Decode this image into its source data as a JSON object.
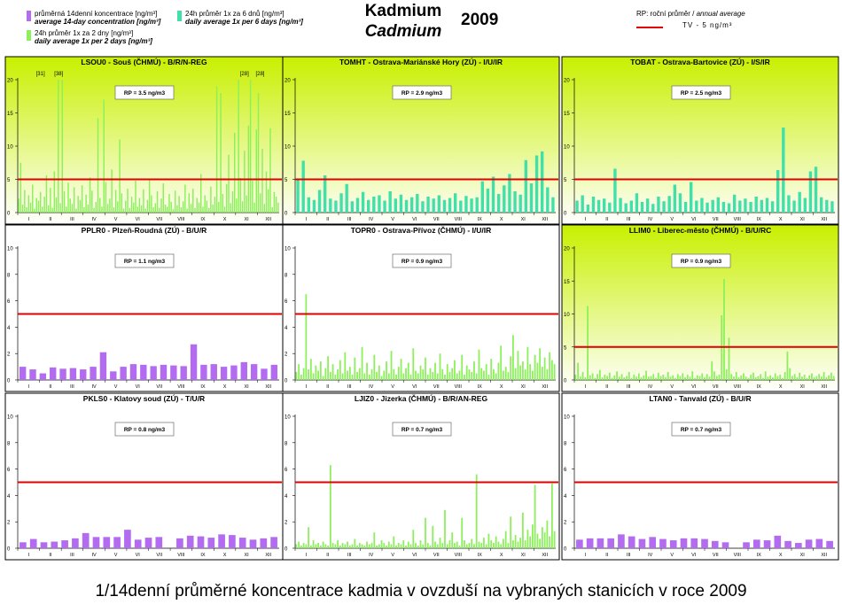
{
  "header": {
    "legend": [
      {
        "line1": "průměrná 14denní koncentrace [ng/m³]",
        "line2": "average 14-day concentration [ng/m³]",
        "color": "#b36cf0"
      },
      {
        "line1": "24h průměr 1x za 2 dny [ng/m³]",
        "line2": "daily average 1x per 2 days [ng/m³]",
        "color": "#8cf05a"
      },
      {
        "line1": "24h průměr 1x za 6 dnů [ng/m³]",
        "line2": "daily average 1x per 6 days [ng/m³]",
        "color": "#40e0a8"
      }
    ],
    "title_cz": "Kadmium",
    "title_en": "Cadmium",
    "year": "2009",
    "rp_label_cz": "RP: roční průměr /",
    "rp_label_en": "annual average",
    "tv_label": "TV - 5 ng/m³",
    "tv_color": "#e00000"
  },
  "caption": "1/14denní průměrné koncentrace kadmia v ovzduší na vybraných stanicích v roce 2009",
  "chart_data": [
    {
      "type": "bar",
      "title": "LSOU0 - Souš (ČHMÚ) - B/R/N-REG",
      "rp": "RP = 3.5 ng/m3",
      "ylim": [
        0,
        20
      ],
      "yticks": [
        0,
        5,
        10,
        15,
        20
      ],
      "bg": "gradient",
      "series_type": "daily2",
      "series_color": "#8cf05a",
      "tv": 5,
      "months": [
        "I",
        "II",
        "III",
        "IV",
        "V",
        "VI",
        "VII",
        "VIII",
        "IX",
        "X",
        "XI",
        "XII"
      ],
      "annotations": [
        "[31]",
        "[38]",
        "[28]",
        "[28]"
      ],
      "values": [
        2.1,
        7.5,
        1.2,
        3.4,
        0.8,
        2.6,
        1.5,
        4.2,
        0.6,
        2.2,
        1.8,
        3.1,
        0.9,
        2.4,
        5.6,
        1.1,
        3.7,
        0.7,
        6.2,
        2.3,
        20,
        1.4,
        20,
        3.2,
        0.9,
        4.5,
        2.1,
        1.3,
        3.8,
        0.6,
        2.5,
        1.9,
        4.1,
        0.8,
        2.7,
        1.2,
        5.3,
        3.3,
        0.7,
        1.6,
        14.2,
        2.2,
        0.9,
        17,
        4.6,
        1.3,
        2.1,
        6.5,
        0.8,
        3.4,
        1.7,
        11,
        2.9,
        0.6,
        1.8,
        3.6,
        0.7,
        2.4,
        1.5,
        4.8,
        0.9,
        2.2,
        1.1,
        3.5,
        0.6,
        1.9,
        5.1,
        2.6,
        0.8,
        1.4,
        3.2,
        0.7,
        2.1,
        4.4,
        1.2,
        0.9,
        2.8,
        1.6,
        0.5,
        3.3,
        1.1,
        2.5,
        0.8,
        1.7,
        4.2,
        0.6,
        2.9,
        1.3,
        3.6,
        0.7,
        2.2,
        1.5,
        5.8,
        0.9,
        2.6,
        1.8,
        0.7,
        3.9,
        1.2,
        2.4,
        19,
        1.6,
        18,
        2.8,
        0.9,
        4.3,
        8.7,
        1.4,
        3.2,
        12,
        2.1,
        20,
        5.2,
        1.7,
        9.3,
        2.6,
        13.1,
        20,
        4.8,
        1.5,
        12.5,
        18,
        2.9,
        9.6,
        1.3,
        6.2,
        3.5,
        12.7,
        0.8,
        3.1,
        2.4,
        1.5
      ]
    },
    {
      "type": "bar",
      "title": "TOMHT - Ostrava-Mariánské Hory (ZÚ) - I/U/IR",
      "rp": "RP = 2.9 ng/m3",
      "ylim": [
        0,
        20
      ],
      "yticks": [
        0,
        5,
        10,
        15,
        20
      ],
      "bg": "gradient",
      "series_type": "daily6",
      "series_color": "#40e0a8",
      "tv": 5,
      "months": [
        "I",
        "II",
        "III",
        "IV",
        "V",
        "VI",
        "VII",
        "VIII",
        "IX",
        "X",
        "XI",
        "XII"
      ],
      "annotations": [],
      "values": [
        5.1,
        7.8,
        2.3,
        1.9,
        3.4,
        5.6,
        2.1,
        1.8,
        2.9,
        4.3,
        1.7,
        2.2,
        3.1,
        1.9,
        2.4,
        2.6,
        1.8,
        3.2,
        2.1,
        2.7,
        1.9,
        2.3,
        2.8,
        1.7,
        2.4,
        2.1,
        2.6,
        1.9,
        2.2,
        2.9,
        1.8,
        2.5,
        2.1,
        2.3,
        4.7,
        3.6,
        5.4,
        2.8,
        4.1,
        5.8,
        3.2,
        2.7,
        7.9,
        4.4,
        8.6,
        9.2,
        3.8,
        2.3
      ]
    },
    {
      "type": "bar",
      "title": "TOBAT - Ostrava-Bartovice (ZÚ) - I/S/IR",
      "rp": "RP = 2.5 ng/m3",
      "ylim": [
        0,
        20
      ],
      "yticks": [
        0,
        5,
        10,
        15,
        20
      ],
      "bg": "gradient",
      "series_type": "daily6",
      "series_color": "#40e0a8",
      "tv": 5,
      "months": [
        "I",
        "II",
        "III",
        "IV",
        "V",
        "VI",
        "VII",
        "VIII",
        "IX",
        "X",
        "XI",
        "XII"
      ],
      "annotations": [],
      "values": [
        1.8,
        2.6,
        1.2,
        2.4,
        1.9,
        2.1,
        1.5,
        6.6,
        2.2,
        1.4,
        1.8,
        2.9,
        1.6,
        2.1,
        1.3,
        2.4,
        1.7,
        2.5,
        4.2,
        2.9,
        1.6,
        4.6,
        1.8,
        2.2,
        1.5,
        1.9,
        2.3,
        1.6,
        1.4,
        2.7,
        1.8,
        2.1,
        1.6,
        2.4,
        1.9,
        2.2,
        1.7,
        6.4,
        12.8,
        2.6,
        1.8,
        3.1,
        2.2,
        6.2,
        6.9,
        2.3,
        1.9,
        1.7
      ]
    },
    {
      "type": "bar",
      "title": "PPLR0 - Plzeň-Roudná (ZÚ) - B/U/R",
      "rp": "RP = 1.1 ng/m3",
      "ylim": [
        0,
        10
      ],
      "yticks": [
        0,
        2,
        4,
        6,
        8,
        10
      ],
      "bg": "white",
      "series_type": "biweekly",
      "series_color": "#b36cf0",
      "tv": 5,
      "months": [
        "I",
        "II",
        "III",
        "IV",
        "V",
        "VI",
        "VII",
        "VIII",
        "IX",
        "X",
        "XI",
        "XII"
      ],
      "annotations": [],
      "values": [
        1.0,
        0.8,
        0.5,
        0.95,
        0.85,
        0.9,
        0.8,
        1.0,
        2.1,
        0.65,
        1.0,
        1.2,
        1.15,
        1.05,
        1.15,
        1.1,
        1.05,
        2.7,
        1.15,
        1.2,
        1.0,
        1.1,
        1.35,
        1.2,
        0.85,
        1.15
      ]
    },
    {
      "type": "bar",
      "title": "TOPR0 - Ostrava-Přívoz (ČHMÚ) - I/U/IR",
      "rp": "RP = 0.9 ng/m3",
      "ylim": [
        0,
        10
      ],
      "yticks": [
        0,
        2,
        4,
        6,
        8,
        10
      ],
      "bg": "white",
      "series_type": "daily2",
      "series_color": "#8cf05a",
      "tv": 5,
      "months": [
        "I",
        "II",
        "III",
        "IV",
        "V",
        "VI",
        "VII",
        "VIII",
        "IX",
        "X",
        "XI",
        "XII"
      ],
      "annotations": [],
      "values": [
        0.6,
        1.2,
        0.4,
        0.9,
        6.5,
        0.8,
        1.6,
        0.5,
        1.1,
        0.7,
        1.4,
        0.3,
        0.9,
        1.8,
        0.6,
        1.2,
        0.4,
        0.8,
        1.5,
        0.5,
        2.1,
        0.7,
        1.0,
        0.4,
        1.7,
        0.6,
        0.9,
        2.5,
        0.5,
        1.3,
        0.4,
        0.8,
        1.9,
        0.6,
        1.1,
        0.3,
        0.7,
        1.4,
        0.5,
        2.2,
        0.8,
        0.4,
        1.0,
        1.6,
        0.5,
        0.9,
        1.3,
        0.4,
        2.4,
        0.7,
        0.5,
        1.1,
        0.8,
        1.7,
        0.4,
        0.9,
        0.6,
        1.3,
        0.5,
        2.0,
        0.8,
        0.4,
        1.2,
        0.6,
        0.9,
        1.5,
        0.5,
        0.7,
        1.9,
        0.4,
        1.1,
        0.8,
        0.6,
        1.4,
        0.5,
        2.3,
        0.9,
        0.7,
        1.2,
        0.4,
        1.6,
        0.8,
        0.5,
        1.3,
        2.6,
        0.7,
        1.0,
        0.6,
        1.8,
        3.4,
        0.9,
        2.2,
        1.1,
        1.4,
        0.8,
        2.5,
        1.2,
        0.7,
        1.9,
        1.3,
        2.4,
        1.0,
        1.7,
        0.8,
        2.1,
        1.5,
        1.2
      ]
    },
    {
      "type": "bar",
      "title": "LLIM0 - Liberec-město (ČHMÚ) - B/U/RC",
      "rp": "RP = 0.9 ng/m3",
      "ylim": [
        0,
        20
      ],
      "yticks": [
        0,
        5,
        10,
        15,
        20
      ],
      "bg": "gradient",
      "series_type": "daily2",
      "series_color": "#8cf05a",
      "tv": 5,
      "months": [
        "I",
        "II",
        "III",
        "IV",
        "V",
        "VI",
        "VII",
        "VIII",
        "IX",
        "X",
        "XI",
        "XII"
      ],
      "annotations": [],
      "values": [
        0.8,
        2.6,
        0.5,
        1.2,
        0.4,
        11.2,
        0.7,
        1.0,
        0.3,
        0.9,
        1.5,
        0.4,
        0.8,
        0.6,
        1.1,
        0.3,
        0.7,
        1.3,
        0.5,
        0.9,
        0.4,
        0.6,
        1.2,
        0.3,
        0.8,
        0.5,
        1.0,
        0.4,
        0.7,
        1.4,
        0.5,
        0.6,
        0.9,
        0.3,
        1.1,
        0.6,
        0.8,
        0.4,
        1.2,
        0.5,
        0.7,
        0.3,
        0.9,
        0.6,
        1.0,
        0.4,
        0.8,
        0.5,
        1.3,
        0.3,
        0.7,
        0.6,
        1.0,
        0.4,
        0.9,
        0.5,
        2.8,
        1.3,
        0.6,
        0.8,
        9.8,
        15.3,
        1.6,
        6.4,
        0.9,
        0.5,
        1.2,
        0.4,
        0.7,
        1.0,
        0.5,
        0.3,
        0.8,
        1.1,
        0.4,
        0.6,
        0.9,
        0.3,
        1.3,
        0.5,
        0.7,
        0.4,
        1.0,
        0.6,
        0.8,
        0.3,
        1.2,
        4.3,
        1.8,
        0.6,
        0.9,
        0.4,
        1.1,
        0.5,
        0.8,
        0.3,
        0.7,
        1.0,
        0.4,
        0.6,
        0.9,
        0.5,
        1.2,
        0.4,
        0.7,
        1.1,
        0.6
      ]
    },
    {
      "type": "bar",
      "title": "PKLS0 - Klatovy soud (ZÚ) - T/U/R",
      "rp": "RP = 0.8 ng/m3",
      "ylim": [
        0,
        10
      ],
      "yticks": [
        0,
        2,
        4,
        6,
        8,
        10
      ],
      "bg": "white",
      "series_type": "biweekly",
      "series_color": "#b36cf0",
      "tv": 5,
      "months": [
        "I",
        "II",
        "III",
        "IV",
        "V",
        "VI",
        "VII",
        "VIII",
        "IX",
        "X",
        "XI",
        "XII"
      ],
      "annotations": [],
      "values": [
        0.45,
        0.7,
        0.45,
        0.5,
        0.6,
        0.75,
        1.15,
        0.85,
        0.85,
        0.85,
        1.4,
        0.65,
        0.8,
        0.85,
        0,
        0.75,
        0.95,
        0.9,
        0.8,
        1.05,
        1.0,
        0.8,
        0.65,
        0.75,
        0.85
      ]
    },
    {
      "type": "bar",
      "title": "LJIZ0 - Jizerka (ČHMÚ) - B/R/AN-REG",
      "rp": "RP = 0.7 ng/m3",
      "ylim": [
        0,
        10
      ],
      "yticks": [
        0,
        2,
        4,
        6,
        8,
        10
      ],
      "bg": "white",
      "series_type": "daily2",
      "series_color": "#8cf05a",
      "tv": 5,
      "months": [
        "I",
        "II",
        "III",
        "IV",
        "V",
        "VI",
        "VII",
        "VIII",
        "IX",
        "X",
        "XI",
        "XII"
      ],
      "annotations": [],
      "values": [
        0.3,
        0.5,
        0.2,
        0.4,
        0.3,
        1.6,
        0.2,
        0.6,
        0.3,
        0.4,
        0.2,
        0.5,
        0.3,
        0.2,
        6.3,
        0.4,
        0.3,
        0.6,
        0.2,
        0.4,
        0.3,
        0.5,
        0.2,
        0.3,
        0.7,
        0.2,
        0.4,
        0.3,
        0.2,
        0.5,
        0.3,
        0.4,
        1.2,
        0.2,
        0.3,
        0.6,
        0.4,
        0.2,
        0.5,
        0.3,
        0.9,
        0.2,
        0.4,
        0.3,
        0.6,
        0.2,
        0.5,
        0.3,
        1.4,
        0.4,
        0.2,
        0.6,
        0.3,
        2.3,
        0.4,
        0.2,
        1.7,
        0.5,
        0.3,
        0.8,
        0.4,
        2.9,
        0.3,
        0.6,
        1.2,
        0.4,
        0.5,
        0.2,
        2.3,
        0.6,
        0.3,
        0.4,
        0.7,
        0.3,
        5.6,
        0.5,
        0.4,
        0.8,
        0.3,
        1.1,
        0.6,
        0.4,
        0.9,
        0.5,
        0.3,
        0.7,
        1.3,
        0.4,
        2.4,
        0.6,
        1.0,
        0.5,
        0.8,
        2.7,
        0.6,
        1.4,
        0.9,
        1.8,
        4.8,
        1.1,
        0.7,
        1.6,
        1.2,
        2.1,
        0.9,
        4.9,
        1.3
      ]
    },
    {
      "type": "bar",
      "title": "LTAN0 - Tanvald (ZÚ) - B/U/R",
      "rp": "RP = 0.7 ng/m3",
      "ylim": [
        0,
        10
      ],
      "yticks": [
        0,
        2,
        4,
        6,
        8,
        10
      ],
      "bg": "white",
      "series_type": "biweekly",
      "series_color": "#b36cf0",
      "tv": 5,
      "months": [
        "I",
        "II",
        "III",
        "IV",
        "V",
        "VI",
        "VII",
        "VIII",
        "IX",
        "X",
        "XI",
        "XII"
      ],
      "annotations": [],
      "values": [
        0.65,
        0.75,
        0.75,
        0.75,
        1.05,
        0.9,
        0.7,
        0.85,
        0.7,
        0.6,
        0.75,
        0.75,
        0.7,
        0.55,
        0.45,
        0,
        0.45,
        0.65,
        0.6,
        0.95,
        0.55,
        0.4,
        0.65,
        0.7,
        0.55
      ]
    }
  ]
}
